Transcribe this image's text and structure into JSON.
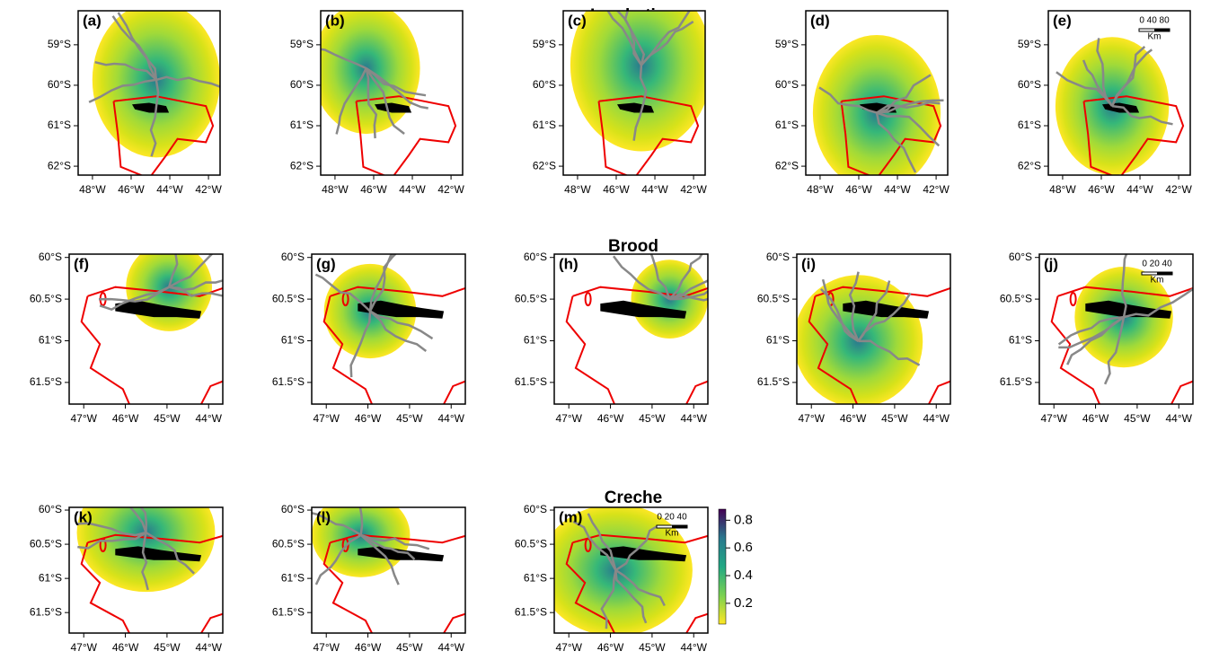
{
  "sections": [
    {
      "title": "Incubation",
      "xlim": [
        -48.74,
        -41.4
      ],
      "ylim": [
        -62.22,
        -58.16
      ],
      "xticks": [
        {
          "value": -48,
          "label": "48°W"
        },
        {
          "value": -46,
          "label": "46°W"
        },
        {
          "value": -44,
          "label": "44°W"
        },
        {
          "value": -42,
          "label": "42°W"
        }
      ],
      "yticks": [
        {
          "value": -59,
          "label": "59°S"
        },
        {
          "value": -60,
          "label": "60°S"
        },
        {
          "value": -61,
          "label": "61°S"
        },
        {
          "value": -62,
          "label": "62°S"
        }
      ],
      "panels": [
        {
          "label": "(a)"
        },
        {
          "label": "(b)"
        },
        {
          "label": "(c)"
        },
        {
          "label": "(d)"
        },
        {
          "label": "(e)",
          "scale_bar": {
            "labels": "0 40 80",
            "unit": "Km"
          }
        }
      ]
    },
    {
      "title": "Brood",
      "xlim": [
        -47.35,
        -43.66
      ],
      "ylim": [
        -61.76,
        -59.96
      ],
      "xticks": [
        {
          "value": -47,
          "label": "47°W"
        },
        {
          "value": -46,
          "label": "46°W"
        },
        {
          "value": -45,
          "label": "45°W"
        },
        {
          "value": -44,
          "label": "44°W"
        }
      ],
      "yticks": [
        {
          "value": -60,
          "label": "60°S"
        },
        {
          "value": -60.5,
          "label": "60.5°S"
        },
        {
          "value": -61,
          "label": "61°S"
        },
        {
          "value": -61.5,
          "label": "61.5°S"
        }
      ],
      "panels": [
        {
          "label": "(f)"
        },
        {
          "label": "(g)"
        },
        {
          "label": "(h)"
        },
        {
          "label": "(i)"
        },
        {
          "label": "(j)",
          "scale_bar": {
            "labels": "0 20 40",
            "unit": "Km"
          }
        }
      ]
    },
    {
      "title": "Creche",
      "xlim": [
        -47.35,
        -43.66
      ],
      "ylim": [
        -61.8,
        -59.96
      ],
      "xticks": [
        {
          "value": -47,
          "label": "47°W"
        },
        {
          "value": -46,
          "label": "46°W"
        },
        {
          "value": -45,
          "label": "45°W"
        },
        {
          "value": -44,
          "label": "44°W"
        }
      ],
      "yticks": [
        {
          "value": -60,
          "label": "60°S"
        },
        {
          "value": -60.5,
          "label": "60.5°S"
        },
        {
          "value": -61,
          "label": "61°S"
        },
        {
          "value": -61.5,
          "label": "61.5°S"
        }
      ],
      "panels": [
        {
          "label": "(k)"
        },
        {
          "label": "(l)"
        },
        {
          "label": "(m)",
          "scale_bar": {
            "labels": "0 20 40",
            "unit": "Km"
          }
        }
      ]
    }
  ],
  "colorbar": {
    "lim": [
      0.05,
      0.88
    ],
    "ticks": [
      0.2,
      0.4,
      0.6,
      0.8
    ]
  }
}
